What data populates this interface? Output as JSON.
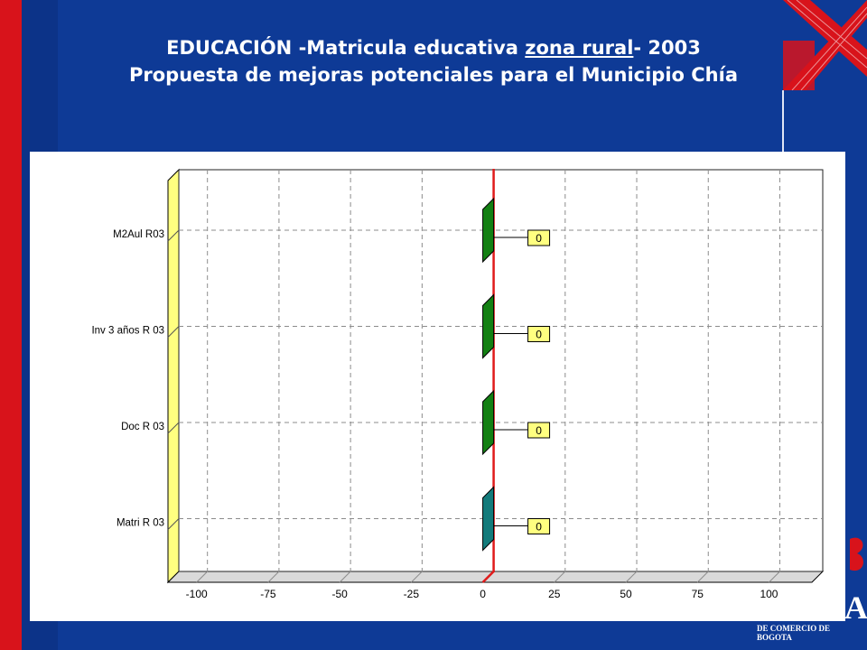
{
  "slide": {
    "title_line1_pre": "EDUCACIÓN -Matricula educativa ",
    "title_line1_underlined": "zona rural",
    "title_line1_post": "- 2003",
    "title_line2": "Propuesta de mejoras potenciales para el Municipio Chía",
    "logo_caption": "DE COMERCIO DE BOGOTA",
    "logo_letter": "A",
    "colors": {
      "background": "#0e3a96",
      "brand_red": "#d8131b"
    }
  },
  "chart_data": {
    "type": "bar",
    "orientation": "horizontal",
    "categories": [
      "M2Aul R03",
      "Inv 3 años R 03",
      "Doc R 03",
      "Matri R 03"
    ],
    "values": [
      0,
      0,
      0,
      0
    ],
    "data_labels": [
      "0",
      "0",
      "0",
      "0"
    ],
    "bar_colors": [
      "#138013",
      "#138013",
      "#138013",
      "#137b7b"
    ],
    "xlim": [
      -110,
      115
    ],
    "xticks": [
      -100,
      -75,
      -50,
      -25,
      0,
      25,
      50,
      75,
      100
    ],
    "xtick_labels": [
      "-100",
      "-75",
      "-50",
      "-25",
      "0",
      "25",
      "50",
      "75",
      "100"
    ],
    "reference_line": {
      "x": 0,
      "color": "#e01b1b"
    },
    "grid": true,
    "title": "",
    "xlabel": "",
    "ylabel": ""
  }
}
